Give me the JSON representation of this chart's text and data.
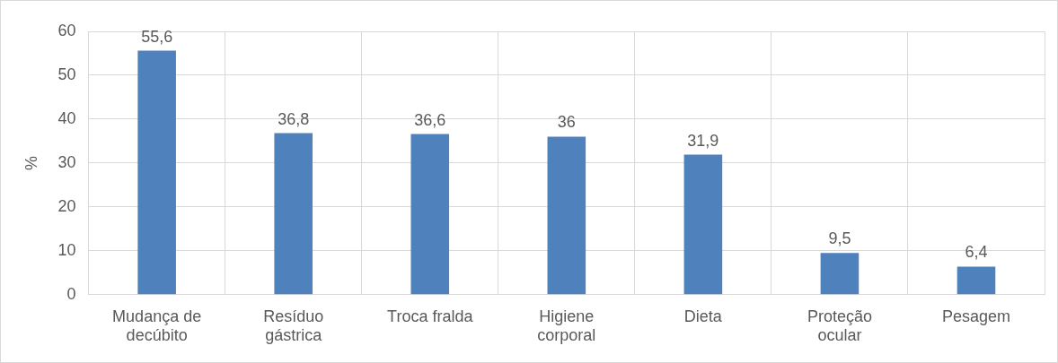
{
  "chart_data": {
    "type": "bar",
    "ylabel": "%",
    "categories": [
      "Mudança de decúbito",
      "Resíduo gástrica",
      "Troca fralda",
      "Higiene corporal",
      "Dieta",
      "Proteção ocular",
      "Pesagem"
    ],
    "values": [
      55.6,
      36.8,
      36.6,
      36,
      31.9,
      9.5,
      6.4
    ],
    "value_labels": [
      "55,6",
      "36,8",
      "36,6",
      "36",
      "31,9",
      "9,5",
      "6,4"
    ],
    "color": "#4f81bd",
    "ylim": [
      0,
      60
    ],
    "yticks": [
      0,
      10,
      20,
      30,
      40,
      50,
      60
    ],
    "grid": true,
    "legend": false
  }
}
